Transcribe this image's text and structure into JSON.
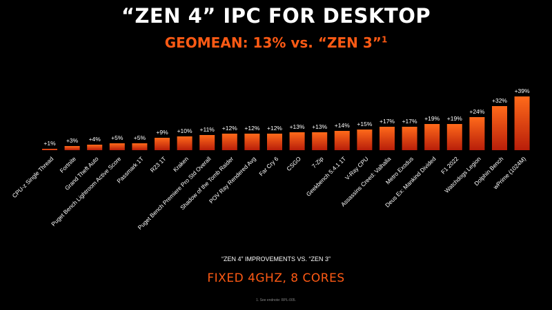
{
  "title": "“ZEN 4” IPC FOR DESKTOP",
  "subtitle": "GEOMEAN: 13% vs. “ZEN 3”",
  "subtitle_superscript": "1",
  "footer_caption": "“ZEN 4” IMPROVEMENTS VS. “ZEN 3”",
  "footer_headline": "FIXED 4GHZ, 8 CORES",
  "endnote": "1. See endnote: RPL-005.",
  "colors": {
    "accent": "#ff5a14",
    "bar_top": "#ff6a1a",
    "bar_bottom": "#b81e0a",
    "background": "#000000"
  },
  "chart_data": {
    "type": "bar",
    "title": "",
    "xlabel": "",
    "ylabel": "",
    "grid": false,
    "ylim": [
      0,
      40
    ],
    "categories": [
      "CPU-z Single Thread",
      "Fortnite",
      "Grand Theft Auto",
      "Puget Bench Lightroom Active Score",
      "Passmark 1T",
      "R23 1T",
      "Kraken",
      "Puget Bench Premiere Pro Std Overall",
      "Shadow of the Tomb Raider",
      "POV Ray Rendered Avg",
      "Far Cry 6",
      "CSGO",
      "7-Zip",
      "Geekbench 5.4.1 1T",
      "V-Ray CPU",
      "Assassins Creed: Valhalla",
      "Metro Exodus",
      "Deus Ex: Mankind Divided",
      "F1 2022",
      "Watchdogs Legion",
      "Dolphin Bench",
      "wPrime (1024M)"
    ],
    "values": [
      1,
      3,
      4,
      5,
      5,
      9,
      10,
      11,
      12,
      12,
      12,
      13,
      13,
      14,
      15,
      17,
      17,
      19,
      19,
      24,
      32,
      39
    ],
    "value_labels": [
      "+1%",
      "+3%",
      "+4%",
      "+5%",
      "+5%",
      "+9%",
      "+10%",
      "+11%",
      "+12%",
      "+12%",
      "+12%",
      "+13%",
      "+13%",
      "+14%",
      "+15%",
      "+17%",
      "+17%",
      "+19%",
      "+19%",
      "+24%",
      "+32%",
      "+39%"
    ]
  }
}
